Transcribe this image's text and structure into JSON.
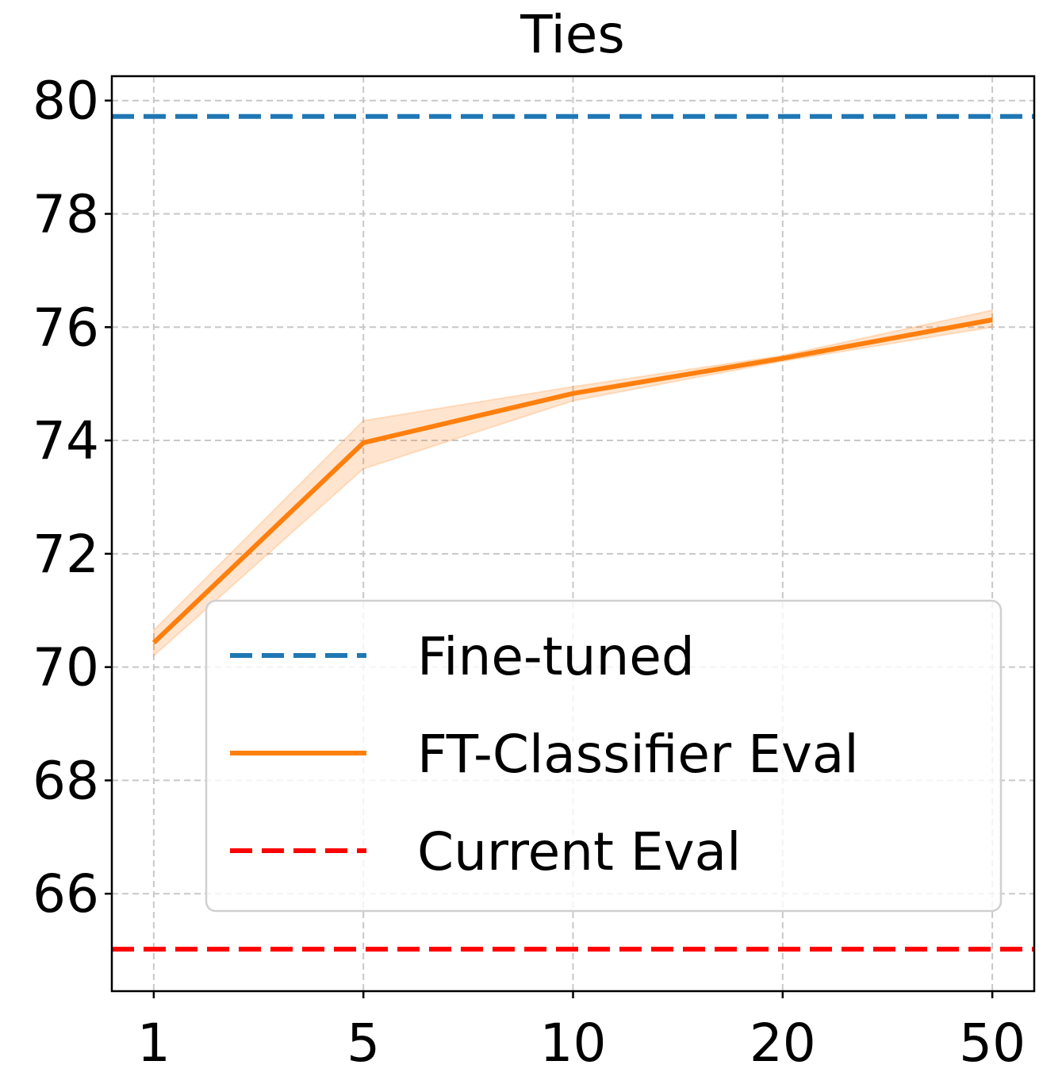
{
  "chart_data": {
    "type": "line",
    "title": "Ties",
    "categories": [
      "1",
      "5",
      "10",
      "20",
      "50"
    ],
    "series": [
      {
        "name": "Fine-tuned",
        "color": "#1f77b4",
        "kind": "hline",
        "dashed": true,
        "value": 79.72
      },
      {
        "name": "FT-Classifier Eval",
        "color": "#ff7f0e",
        "kind": "line",
        "dashed": false,
        "values": [
          70.43,
          73.96,
          74.83,
          75.45,
          76.13
        ],
        "lower": [
          70.2,
          73.5,
          74.7,
          75.4,
          76.0
        ],
        "upper": [
          70.65,
          74.35,
          74.95,
          75.5,
          76.3
        ]
      },
      {
        "name": "Current Eval",
        "color": "#ff0000",
        "kind": "hline",
        "dashed": true,
        "value": 65.02
      }
    ],
    "ylim": [
      64.28,
      80.43
    ],
    "yticks": [
      66,
      68,
      70,
      72,
      74,
      76,
      78,
      80
    ],
    "grid": true,
    "legend": "lower right"
  }
}
